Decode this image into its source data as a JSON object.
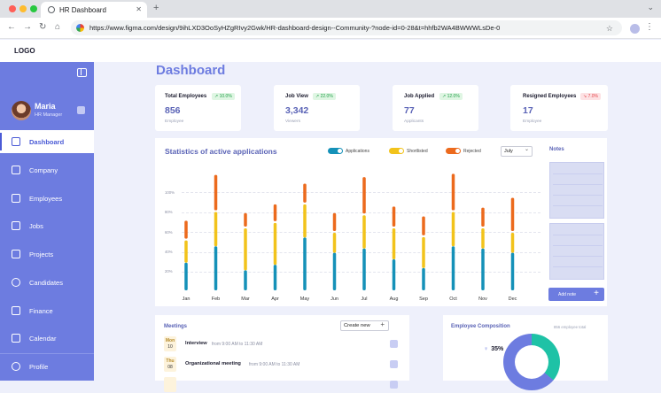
{
  "browser": {
    "tab_title": "HR Dashboard",
    "url": "https://www.figma.com/design/9ihLXD3OoSyHZgRIvy2Gwk/HR-dashboard-design--Community-?node-id=0-28&t=hhfb2WA4BWWWLsDe-0"
  },
  "app": {
    "logo": "LOGO",
    "title": "Dashboard"
  },
  "profile": {
    "name": "Maria",
    "role": "HR Manager"
  },
  "nav": {
    "dashboard": "Dashboard",
    "company": "Company",
    "employees": "Employees",
    "jobs": "Jobs",
    "projects": "Projects",
    "candidates": "Candidates",
    "finance": "Finance",
    "calendar": "Calendar",
    "profile": "Profile"
  },
  "stats": [
    {
      "title": "Total Employees",
      "value": "856",
      "sub": "Employee",
      "change": "10.0%",
      "trend": "up"
    },
    {
      "title": "Job View",
      "value": "3,342",
      "sub": "Viewers",
      "change": "22.0%",
      "trend": "up"
    },
    {
      "title": "Job Applied",
      "value": "77",
      "sub": "Applicants",
      "change": "12.0%",
      "trend": "up"
    },
    {
      "title": "Resigned Employees",
      "value": "17",
      "sub": "Employee",
      "change": "7.0%",
      "trend": "down"
    }
  ],
  "chart": {
    "title": "Statistics of active applications",
    "legend_applications": "Applications",
    "legend_shortlisted": "Shortlisted",
    "legend_rejected": "Rejected",
    "month_select": "July",
    "colors": {
      "applications": "#1591b8",
      "shortlisted": "#f2c31b",
      "rejected": "#ec6a1d"
    }
  },
  "chart_data": {
    "type": "bar",
    "stacked": true,
    "categories": [
      "Jan",
      "Feb",
      "Mar",
      "Apr",
      "May",
      "Jun",
      "Jul",
      "Aug",
      "Sep",
      "Oct",
      "Nov",
      "Dec"
    ],
    "y_ticks": [
      "100%",
      "80%",
      "60%",
      "40%",
      "20%"
    ],
    "ylim": [
      0,
      100
    ],
    "series": [
      {
        "name": "Applications",
        "values": [
          27,
          42,
          20,
          25,
          50,
          36,
          40,
          30,
          22,
          42,
          40,
          36
        ]
      },
      {
        "name": "Shortlisted",
        "values": [
          22,
          33,
          40,
          40,
          32,
          20,
          32,
          30,
          30,
          33,
          20,
          20
        ]
      },
      {
        "name": "Rejected",
        "values": [
          18,
          34,
          14,
          17,
          19,
          18,
          35,
          20,
          19,
          35,
          19,
          32
        ]
      }
    ],
    "grid": true,
    "legend_position": "top-right"
  },
  "notes": {
    "title": "Notes",
    "add_label": "Add note"
  },
  "meetings": {
    "title": "Meetings",
    "create_label": "Create new",
    "items": [
      {
        "day": "Mon",
        "date": "10",
        "name": "Interview",
        "time": "from 9:00 AM to 11:30 AM"
      },
      {
        "day": "Thu",
        "date": "08",
        "name": "Organizational meeting",
        "time": "from 9:00 AM to 11:30 AM"
      }
    ]
  },
  "composition": {
    "title": "Employee Composition",
    "total": "856 employee total",
    "percent": "35%"
  }
}
